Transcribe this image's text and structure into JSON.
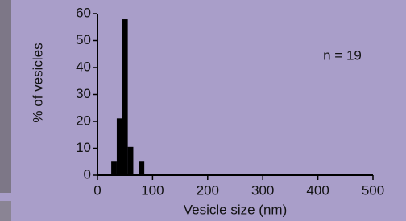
{
  "chart_data": {
    "type": "histogram",
    "xlabel": "Vesicle size (nm)",
    "ylabel": "% of vesicles",
    "annotation": "n = 19",
    "bins": [
      25,
      35,
      45,
      55,
      65,
      75,
      85
    ],
    "values": [
      5.3,
      21.1,
      57.9,
      10.5,
      0,
      5.3
    ],
    "color": "#000000",
    "xlim": [
      0,
      500
    ],
    "xticks": [
      0,
      100,
      200,
      300,
      400,
      500
    ],
    "ylim": [
      0,
      60
    ],
    "yticks": [
      0,
      10,
      20,
      30,
      40,
      50,
      60
    ]
  }
}
